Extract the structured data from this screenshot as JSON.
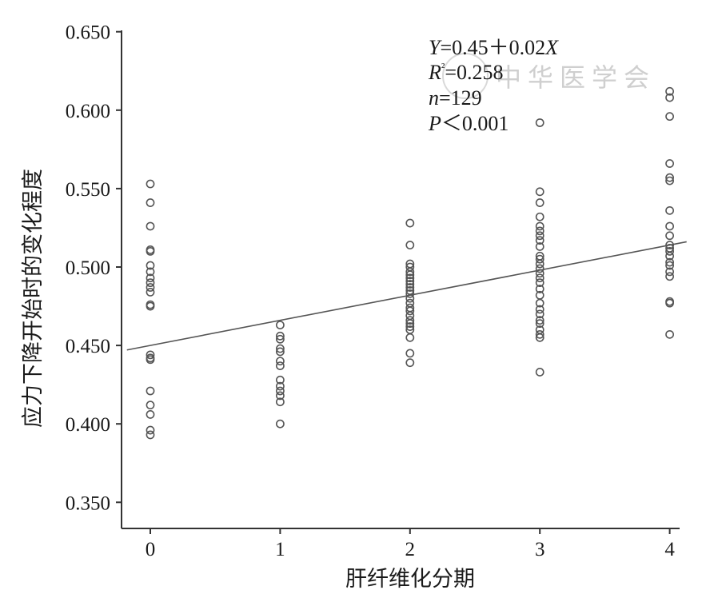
{
  "chart_data": {
    "type": "scatter",
    "xlabel": "肝纤维化分期",
    "ylabel": "应力下降开始时的变化程度",
    "xlim": [
      -0.2,
      4.1
    ],
    "ylim": [
      0.332,
      0.651
    ],
    "xticks": [
      0,
      1,
      2,
      3,
      4
    ],
    "yticks": [
      0.35,
      0.4,
      0.45,
      0.5,
      0.55,
      0.6,
      0.65
    ],
    "xtick_labels": [
      "0",
      "1",
      "2",
      "3",
      "4"
    ],
    "ytick_labels": [
      "0.350",
      "0.400",
      "0.450",
      "0.500",
      "0.550",
      "0.600",
      "0.650"
    ],
    "grid": false,
    "regression": {
      "intercept": 0.45,
      "slope": 0.016
    },
    "annotations": [
      [
        "Y",
        "=0.45＋0.02",
        "X"
      ],
      [
        "R",
        "²",
        "=0.258"
      ],
      [
        "n",
        "=129"
      ],
      [
        "P",
        "＜0.001"
      ]
    ],
    "watermark": "中华医学会",
    "series": [
      {
        "x": 0,
        "values": [
          0.553,
          0.541,
          0.526,
          0.511,
          0.51,
          0.501,
          0.497,
          0.493,
          0.49,
          0.487,
          0.484,
          0.476,
          0.475,
          0.444,
          0.442,
          0.441,
          0.421,
          0.412,
          0.406,
          0.396,
          0.393
        ]
      },
      {
        "x": 1,
        "values": [
          0.463,
          0.456,
          0.454,
          0.448,
          0.446,
          0.44,
          0.437,
          0.428,
          0.424,
          0.421,
          0.418,
          0.414,
          0.4
        ]
      },
      {
        "x": 2,
        "values": [
          0.528,
          0.514,
          0.502,
          0.5,
          0.497,
          0.495,
          0.493,
          0.491,
          0.489,
          0.487,
          0.485,
          0.483,
          0.48,
          0.477,
          0.474,
          0.472,
          0.469,
          0.466,
          0.464,
          0.462,
          0.46,
          0.455,
          0.445,
          0.439
        ]
      },
      {
        "x": 3,
        "values": [
          0.592,
          0.548,
          0.541,
          0.532,
          0.526,
          0.523,
          0.52,
          0.517,
          0.513,
          0.507,
          0.505,
          0.502,
          0.499,
          0.496,
          0.493,
          0.49,
          0.486,
          0.482,
          0.477,
          0.473,
          0.47,
          0.466,
          0.464,
          0.46,
          0.457,
          0.455,
          0.433
        ]
      },
      {
        "x": 4,
        "values": [
          0.612,
          0.608,
          0.596,
          0.566,
          0.557,
          0.555,
          0.536,
          0.526,
          0.52,
          0.514,
          0.512,
          0.51,
          0.507,
          0.503,
          0.501,
          0.497,
          0.494,
          0.478,
          0.477,
          0.457
        ]
      }
    ]
  }
}
